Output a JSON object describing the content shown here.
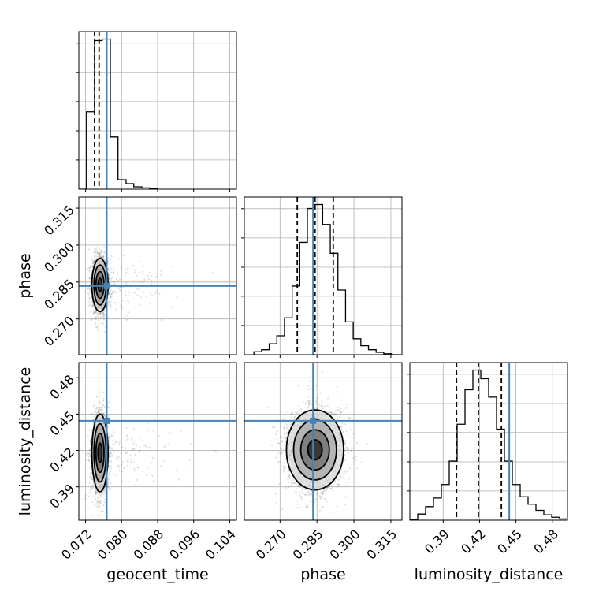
{
  "chart_data": {
    "type": "corner",
    "parameters": [
      "geocent_time",
      "phase",
      "luminosity_distance"
    ],
    "truth": {
      "geocent_time": 0.0767,
      "phase": 0.2834,
      "luminosity_distance": 0.4445
    },
    "truth_color": "#4682b4",
    "grid": true,
    "axes": {
      "geocent_time": {
        "range": [
          0.0705,
          0.1055
        ],
        "ticks": [
          0.072,
          0.08,
          0.088,
          0.096,
          0.104
        ],
        "tick_labels": [
          "0.072",
          "0.080",
          "0.088",
          "0.096",
          "0.104"
        ],
        "xlabel": "geocent_time"
      },
      "phase": {
        "range": [
          0.2555,
          0.3195
        ],
        "ticks": [
          0.27,
          0.285,
          0.3,
          0.315
        ],
        "tick_labels": [
          "0.270",
          "0.285",
          "0.300",
          "0.315"
        ],
        "xlabel": "phase",
        "ylabel": "phase"
      },
      "luminosity_distance": {
        "range": [
          0.3625,
          0.4925
        ],
        "ticks": [
          0.39,
          0.42,
          0.45,
          0.48
        ],
        "tick_labels": [
          "0.39",
          "0.42",
          "0.45",
          "0.48"
        ],
        "xlabel": "luminosity_distance",
        "ylabel": "luminosity_distance"
      }
    },
    "histograms": [
      {
        "parameter": "geocent_time",
        "bin_edges": [
          0.0705,
          0.0722,
          0.074,
          0.0757,
          0.0775,
          0.0792,
          0.081,
          0.0827,
          0.0845,
          0.0862,
          0.088
        ],
        "counts": [
          0,
          490,
          940,
          950,
          330,
          60,
          35,
          15,
          8,
          4
        ],
        "quantiles": [
          0.074,
          0.075,
          0.0767
        ]
      },
      {
        "parameter": "phase",
        "bin_edges": [
          0.2594,
          0.2625,
          0.2656,
          0.2687,
          0.2718,
          0.2749,
          0.278,
          0.2811,
          0.2842,
          0.2873,
          0.2904,
          0.2935,
          0.2966,
          0.2997,
          0.3028,
          0.3059,
          0.309,
          0.3121,
          0.3152,
          0.3183
        ],
        "counts": [
          15,
          25,
          55,
          95,
          185,
          345,
          565,
          735,
          755,
          655,
          510,
          325,
          165,
          80,
          45,
          25,
          12,
          5,
          0
        ],
        "quantiles": [
          0.277,
          0.2842,
          0.2916
        ]
      },
      {
        "parameter": "luminosity_distance",
        "bin_edges": [
          0.3625,
          0.369,
          0.3755,
          0.382,
          0.3885,
          0.395,
          0.4015,
          0.408,
          0.4145,
          0.421,
          0.4275,
          0.434,
          0.4405,
          0.447,
          0.4535,
          0.46,
          0.4665,
          0.473,
          0.4795,
          0.486,
          0.4925
        ],
        "counts": [
          2,
          25,
          55,
          90,
          145,
          240,
          390,
          530,
          610,
          575,
          500,
          370,
          240,
          145,
          95,
          65,
          40,
          22,
          12,
          5
        ],
        "quantiles": [
          0.401,
          0.419,
          0.438
        ]
      }
    ],
    "contours_2d": [
      {
        "x": "geocent_time",
        "y": "phase",
        "center": [
          0.0752,
          0.2838
        ],
        "sigma": [
          0.0009,
          0.0054
        ],
        "levels": [
          0.5,
          1.0,
          1.5,
          2.0
        ]
      },
      {
        "x": "geocent_time",
        "y": "luminosity_distance",
        "center": [
          0.0752,
          0.418
        ],
        "sigma": [
          0.0009,
          0.016
        ],
        "levels": [
          0.5,
          1.0,
          1.5,
          2.0
        ]
      },
      {
        "x": "phase",
        "y": "luminosity_distance",
        "center": [
          0.2842,
          0.4205
        ],
        "sigma": [
          0.0058,
          0.0165
        ],
        "levels": [
          0.5,
          1.0,
          1.5,
          2.0
        ]
      }
    ]
  }
}
